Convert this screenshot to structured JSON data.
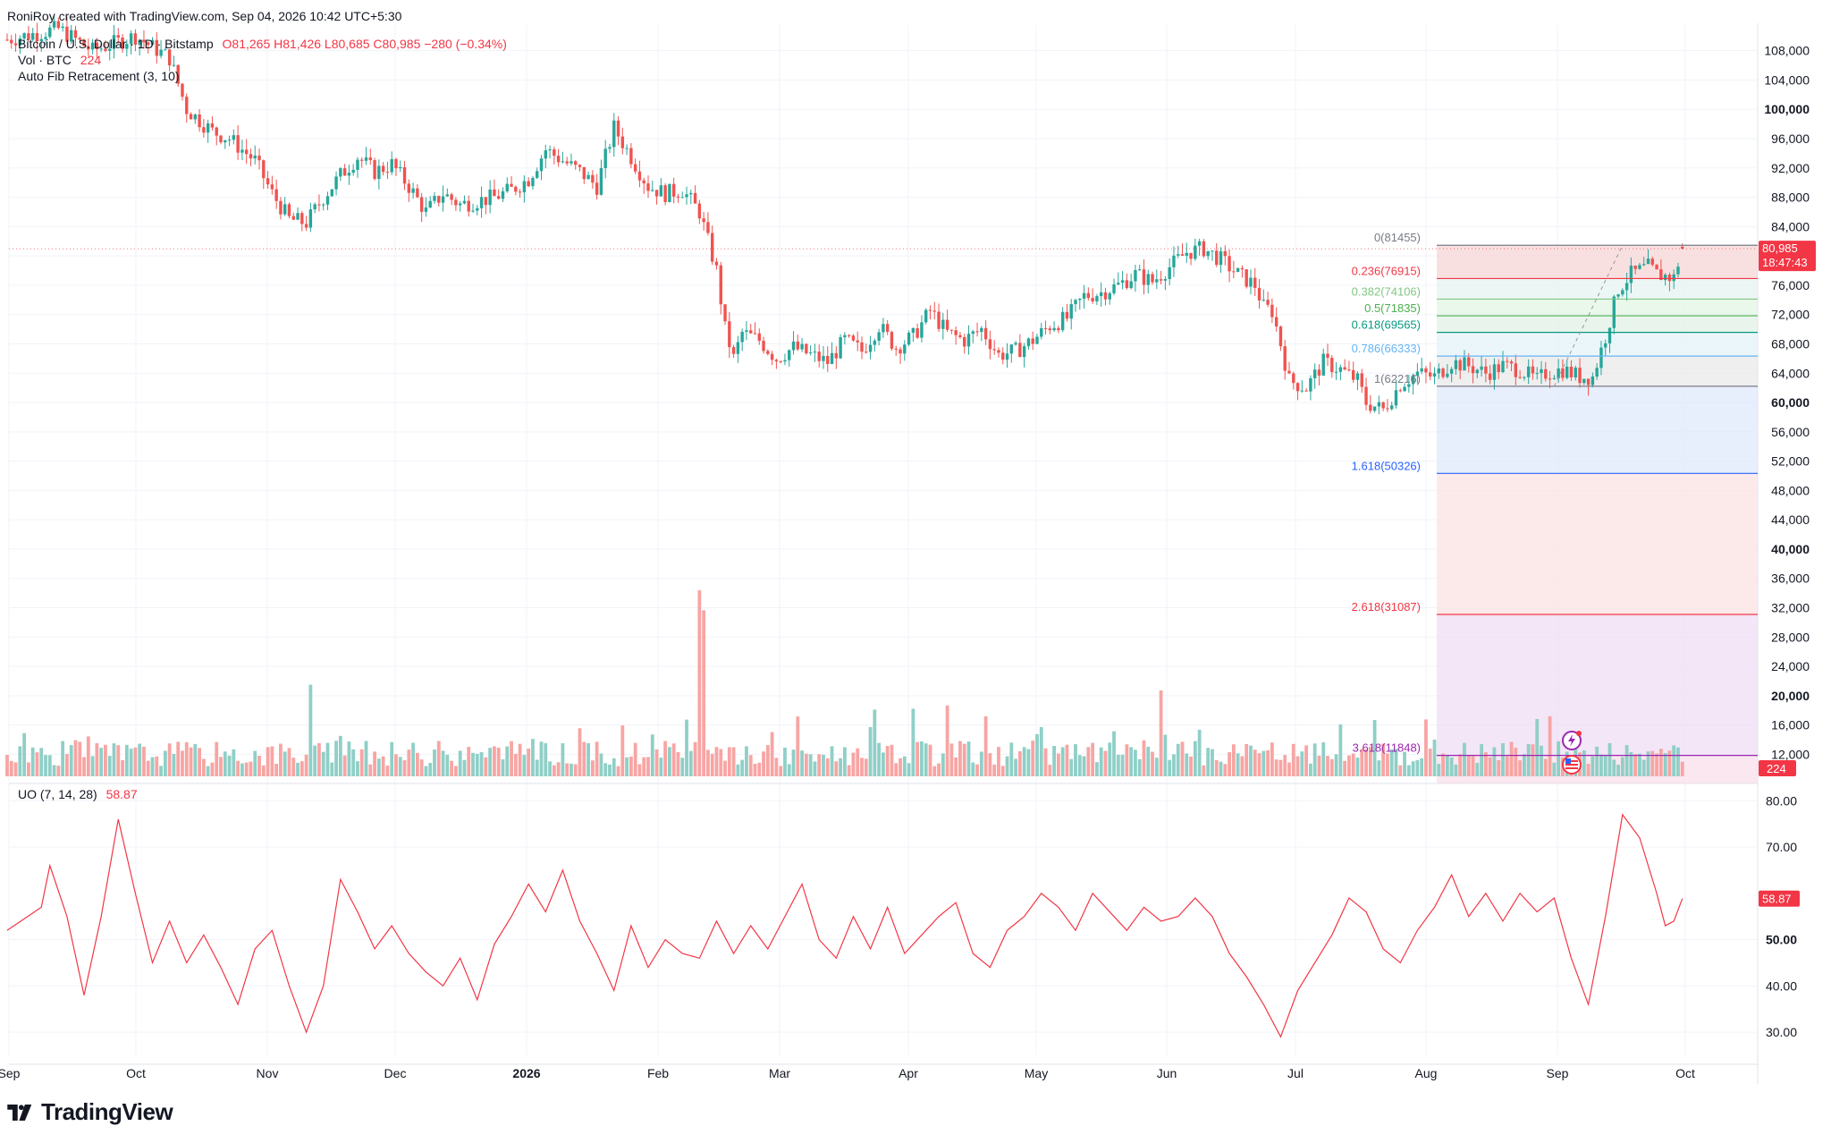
{
  "header": {
    "created_by": "RoniRoy created with TradingView.com, Sep 04, 2026 10:42 UTC+5:30"
  },
  "legend": {
    "symbol": "Bitcoin / U.S. Dollar · 1D · Bitstamp",
    "ohlc": "O81,265  H81,426  L80,685  C80,985  −280 (−0.34%)",
    "vol_label": "Vol · BTC",
    "vol_value": "224",
    "fib_label": "Auto Fib Retracement (3, 10)",
    "uo_label": "UO (7, 14, 28)",
    "uo_value": "58.87"
  },
  "price_badge": {
    "price": "80,985",
    "countdown": "18:47:43"
  },
  "volume_badge": "224",
  "uo_badge": "58.87",
  "brand": "TradingView",
  "colors": {
    "up": "#26a69a",
    "down": "#ef5350",
    "vol_up": "#8fcfc7",
    "vol_down": "#f7a5a3",
    "uo_line": "#f23645",
    "grid": "#f0f3fa"
  },
  "chart_data": [
    {
      "type": "candlestick",
      "title": "Bitcoin / U.S. Dollar · 1D · Bitstamp",
      "x_ticks": [
        "Sep",
        "Oct",
        "Nov",
        "Dec",
        "2026",
        "Feb",
        "Mar",
        "Apr",
        "May",
        "Jun",
        "Jul",
        "Aug",
        "Sep",
        "Oct"
      ],
      "y_ticks": [
        "108,000",
        "104,000",
        "100,000",
        "96,000",
        "92,000",
        "88,000",
        "84,000",
        "80,000",
        "76,000",
        "72,000",
        "68,000",
        "64,000",
        "60,000",
        "56,000",
        "52,000",
        "48,000",
        "44,000",
        "40,000",
        "36,000",
        "32,000",
        "28,000",
        "24,000",
        "20,000",
        "16,000",
        "12,000"
      ],
      "y_bold_ticks": [
        "100,000",
        "60,000",
        "40,000",
        "20,000"
      ],
      "ylim": [
        9000,
        111500
      ],
      "last_price": 80985,
      "close_path": [
        [
          0,
          109500
        ],
        [
          12,
          111000
        ],
        [
          20,
          108000
        ],
        [
          30,
          110000
        ],
        [
          38,
          107000
        ],
        [
          42,
          100000
        ],
        [
          48,
          97000
        ],
        [
          52,
          96000
        ],
        [
          58,
          93000
        ],
        [
          62,
          88500
        ],
        [
          66,
          85000
        ],
        [
          70,
          84500
        ],
        [
          74,
          88000
        ],
        [
          78,
          91000
        ],
        [
          82,
          93500
        ],
        [
          86,
          91500
        ],
        [
          90,
          92500
        ],
        [
          94,
          89500
        ],
        [
          98,
          86000
        ],
        [
          102,
          88500
        ],
        [
          106,
          87000
        ],
        [
          110,
          87500
        ],
        [
          114,
          88000
        ],
        [
          118,
          89000
        ],
        [
          122,
          90500
        ],
        [
          126,
          94500
        ],
        [
          130,
          93000
        ],
        [
          134,
          91500
        ],
        [
          138,
          89500
        ],
        [
          142,
          97500
        ],
        [
          146,
          93500
        ],
        [
          150,
          89500
        ],
        [
          154,
          88500
        ],
        [
          158,
          89000
        ],
        [
          162,
          86000
        ],
        [
          166,
          78000
        ],
        [
          168,
          70000
        ],
        [
          170,
          66000
        ],
        [
          172,
          69500
        ],
        [
          176,
          68500
        ],
        [
          180,
          66000
        ],
        [
          184,
          67500
        ],
        [
          188,
          66500
        ],
        [
          192,
          65500
        ],
        [
          196,
          68500
        ],
        [
          200,
          67000
        ],
        [
          204,
          70500
        ],
        [
          208,
          67500
        ],
        [
          212,
          69000
        ],
        [
          216,
          72500
        ],
        [
          220,
          69500
        ],
        [
          224,
          68500
        ],
        [
          228,
          70000
        ],
        [
          232,
          66500
        ],
        [
          236,
          67000
        ],
        [
          240,
          68500
        ],
        [
          244,
          70500
        ],
        [
          248,
          71500
        ],
        [
          252,
          74500
        ],
        [
          256,
          75000
        ],
        [
          260,
          76000
        ],
        [
          264,
          77500
        ],
        [
          268,
          76500
        ],
        [
          272,
          78500
        ],
        [
          276,
          80500
        ],
        [
          280,
          81000
        ],
        [
          284,
          79500
        ],
        [
          288,
          77500
        ],
        [
          292,
          76000
        ],
        [
          294,
          73000
        ],
        [
          296,
          72500
        ],
        [
          298,
          68000
        ],
        [
          300,
          63000
        ],
        [
          304,
          62000
        ],
        [
          308,
          65500
        ],
        [
          312,
          64500
        ],
        [
          316,
          63000
        ],
        [
          318,
          60000
        ],
        [
          322,
          59000
        ],
        [
          326,
          62500
        ],
        [
          330,
          64000
        ],
        [
          334,
          63500
        ],
        [
          338,
          65500
        ],
        [
          342,
          65000
        ],
        [
          346,
          64000
        ],
        [
          350,
          65000
        ],
        [
          354,
          64500
        ],
        [
          358,
          63000
        ],
        [
          360,
          64000
        ],
        [
          364,
          64500
        ],
        [
          368,
          63500
        ],
        [
          371,
          63500
        ],
        [
          374,
          69000
        ],
        [
          377,
          75500
        ],
        [
          380,
          77500
        ],
        [
          384,
          78500
        ],
        [
          386,
          77500
        ],
        [
          390,
          77000
        ],
        [
          392,
          80985
        ]
      ],
      "fib_levels": [
        {
          "label": "0(81455)",
          "value": 81455
        },
        {
          "label": "0.236(76915)",
          "value": 76915
        },
        {
          "label": "0.382(74106)",
          "value": 74106
        },
        {
          "label": "0.5(71835)",
          "value": 71835
        },
        {
          "label": "0.618(69565)",
          "value": 69565
        },
        {
          "label": "0.786(66333)",
          "value": 66333
        },
        {
          "label": "1(62216)",
          "value": 62216
        },
        {
          "label": "1.618(50326)",
          "value": 50326
        },
        {
          "label": "2.618(31087)",
          "value": 31087
        },
        {
          "label": "3.618(11848)",
          "value": 11848
        }
      ]
    },
    {
      "type": "bar",
      "title": "Vol · BTC",
      "last_value": 224,
      "notable_spikes": [
        {
          "day": 71,
          "value": 3.2
        },
        {
          "day": 162,
          "value": 6.5
        },
        {
          "day": 163,
          "value": 5.8
        },
        {
          "day": 270,
          "value": 3.0
        },
        {
          "day": 358,
          "value": 2.0
        },
        {
          "day": 361,
          "value": 2.1
        }
      ]
    },
    {
      "type": "line",
      "title": "UO (7, 14, 28)",
      "y_ticks": [
        "80.00",
        "70.00",
        "50.00",
        "40.00",
        "30.00"
      ],
      "ylim": [
        25,
        82
      ],
      "last_value": 58.87,
      "points": [
        [
          0,
          52
        ],
        [
          8,
          57
        ],
        [
          10,
          66
        ],
        [
          14,
          55
        ],
        [
          18,
          38
        ],
        [
          22,
          55
        ],
        [
          26,
          76
        ],
        [
          30,
          60
        ],
        [
          34,
          45
        ],
        [
          38,
          54
        ],
        [
          42,
          45
        ],
        [
          46,
          51
        ],
        [
          50,
          44
        ],
        [
          54,
          36
        ],
        [
          58,
          48
        ],
        [
          62,
          52
        ],
        [
          66,
          40
        ],
        [
          70,
          30
        ],
        [
          74,
          40
        ],
        [
          78,
          63
        ],
        [
          82,
          56
        ],
        [
          86,
          48
        ],
        [
          90,
          53
        ],
        [
          94,
          47
        ],
        [
          98,
          43
        ],
        [
          102,
          40
        ],
        [
          106,
          46
        ],
        [
          110,
          37
        ],
        [
          114,
          49
        ],
        [
          118,
          55
        ],
        [
          122,
          62
        ],
        [
          126,
          56
        ],
        [
          130,
          65
        ],
        [
          134,
          54
        ],
        [
          138,
          47
        ],
        [
          142,
          39
        ],
        [
          146,
          53
        ],
        [
          150,
          44
        ],
        [
          154,
          50
        ],
        [
          158,
          47
        ],
        [
          162,
          46
        ],
        [
          166,
          54
        ],
        [
          170,
          47
        ],
        [
          174,
          53
        ],
        [
          178,
          48
        ],
        [
          182,
          55
        ],
        [
          186,
          62
        ],
        [
          190,
          50
        ],
        [
          194,
          46
        ],
        [
          198,
          55
        ],
        [
          202,
          48
        ],
        [
          206,
          57
        ],
        [
          210,
          47
        ],
        [
          214,
          51
        ],
        [
          218,
          55
        ],
        [
          222,
          58
        ],
        [
          226,
          47
        ],
        [
          230,
          44
        ],
        [
          234,
          52
        ],
        [
          238,
          55
        ],
        [
          242,
          60
        ],
        [
          246,
          57
        ],
        [
          250,
          52
        ],
        [
          254,
          60
        ],
        [
          258,
          56
        ],
        [
          262,
          52
        ],
        [
          266,
          57
        ],
        [
          270,
          54
        ],
        [
          274,
          55
        ],
        [
          278,
          59
        ],
        [
          282,
          55
        ],
        [
          286,
          47
        ],
        [
          290,
          42
        ],
        [
          294,
          36
        ],
        [
          298,
          29
        ],
        [
          302,
          39
        ],
        [
          306,
          45
        ],
        [
          310,
          51
        ],
        [
          314,
          59
        ],
        [
          318,
          56
        ],
        [
          322,
          48
        ],
        [
          326,
          45
        ],
        [
          330,
          52
        ],
        [
          334,
          57
        ],
        [
          338,
          64
        ],
        [
          342,
          55
        ],
        [
          346,
          60
        ],
        [
          350,
          54
        ],
        [
          354,
          60
        ],
        [
          358,
          56
        ],
        [
          362,
          59
        ],
        [
          366,
          46
        ],
        [
          370,
          36
        ],
        [
          374,
          55
        ],
        [
          378,
          77
        ],
        [
          382,
          72
        ],
        [
          386,
          60
        ],
        [
          388,
          53
        ],
        [
          390,
          54
        ],
        [
          392,
          58.87
        ]
      ]
    }
  ]
}
